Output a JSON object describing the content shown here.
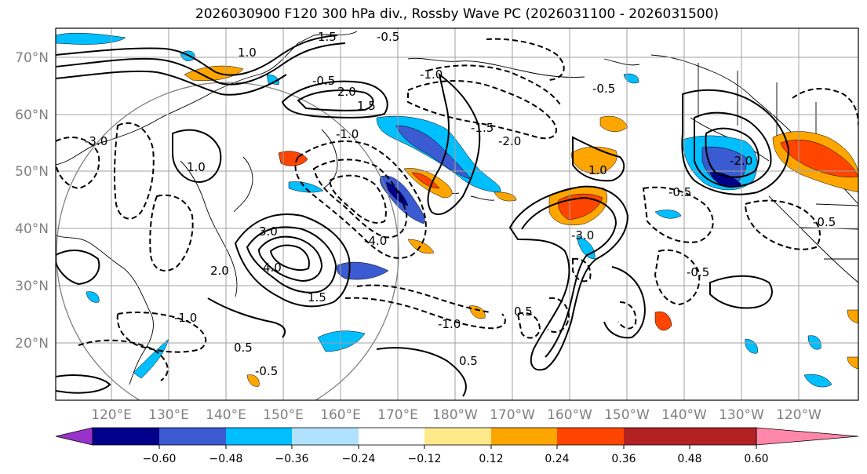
{
  "title": "2026030900 F120 300 hPa div., Rossby Wave PC (2026031100 - 2026031500)",
  "map": {
    "lat_labels": [
      "70°N",
      "60°N",
      "50°N",
      "40°N",
      "30°N",
      "20°N"
    ],
    "lon_labels": [
      "120°E",
      "130°E",
      "140°E",
      "150°E",
      "160°E",
      "170°E",
      "180°W",
      "170°W",
      "160°W",
      "150°W",
      "140°W",
      "130°W",
      "120°W"
    ],
    "contour_labels": [
      {
        "text": "1.0",
        "pos": "NW Pacific jet"
      },
      {
        "text": "1.5",
        "pos": "N jet"
      },
      {
        "text": "-0.5",
        "pos": "north"
      },
      {
        "text": "2.0",
        "pos": "Bering"
      },
      {
        "text": "-0.5",
        "pos": "Bering"
      },
      {
        "text": "-1.0",
        "pos": "Kamchatka"
      },
      {
        "text": "1.5",
        "pos": "Kamchatka"
      },
      {
        "text": "-1.0",
        "pos": "central"
      },
      {
        "text": "-1.5",
        "pos": "central"
      },
      {
        "text": "-2.0",
        "pos": "central"
      },
      {
        "text": "-3.0",
        "pos": "west"
      },
      {
        "text": "1.0",
        "pos": "west"
      },
      {
        "text": "3.0",
        "pos": "Japan"
      },
      {
        "text": "4.0",
        "pos": "Japan"
      },
      {
        "text": "1.5",
        "pos": "Japan"
      },
      {
        "text": "-4.0",
        "pos": "east of Japan"
      },
      {
        "text": "2.0",
        "pos": "Japan"
      },
      {
        "text": "-1.0",
        "pos": "south Japan"
      },
      {
        "text": "-0.5",
        "pos": "south"
      },
      {
        "text": "0.5",
        "pos": "south"
      },
      {
        "text": "-1.0",
        "pos": "Aleutian"
      },
      {
        "text": "1.0",
        "pos": "Gulf of Alaska"
      },
      {
        "text": "-3.0",
        "pos": "central Pacific"
      },
      {
        "text": "-0.5",
        "pos": "east"
      },
      {
        "text": "-0.5",
        "pos": "NE"
      },
      {
        "text": "-2.0",
        "pos": "BC coast"
      },
      {
        "text": "-0.5",
        "pos": "west coast"
      },
      {
        "text": "0.5",
        "pos": "subtropics"
      },
      {
        "text": "-0.5",
        "pos": "central"
      },
      {
        "text": "0.5",
        "pos": "far east"
      }
    ]
  },
  "colorbar": {
    "tick_labels": [
      "−0.60",
      "−0.48",
      "−0.36",
      "−0.24",
      "−0.12",
      "0.12",
      "0.24",
      "0.36",
      "0.48",
      "0.60"
    ],
    "colors": [
      "#9932cc",
      "#00008b",
      "#3a5bd1",
      "#00bfff",
      "#b0e2ff",
      "#ffffff",
      "#ffe98a",
      "#ffa500",
      "#ff4500",
      "#b22222",
      "#ff88aa"
    ]
  },
  "colors": {
    "land": "#ffffff",
    "grid": "#a0a0a0",
    "contour": "#000000",
    "circle": "#808080"
  }
}
